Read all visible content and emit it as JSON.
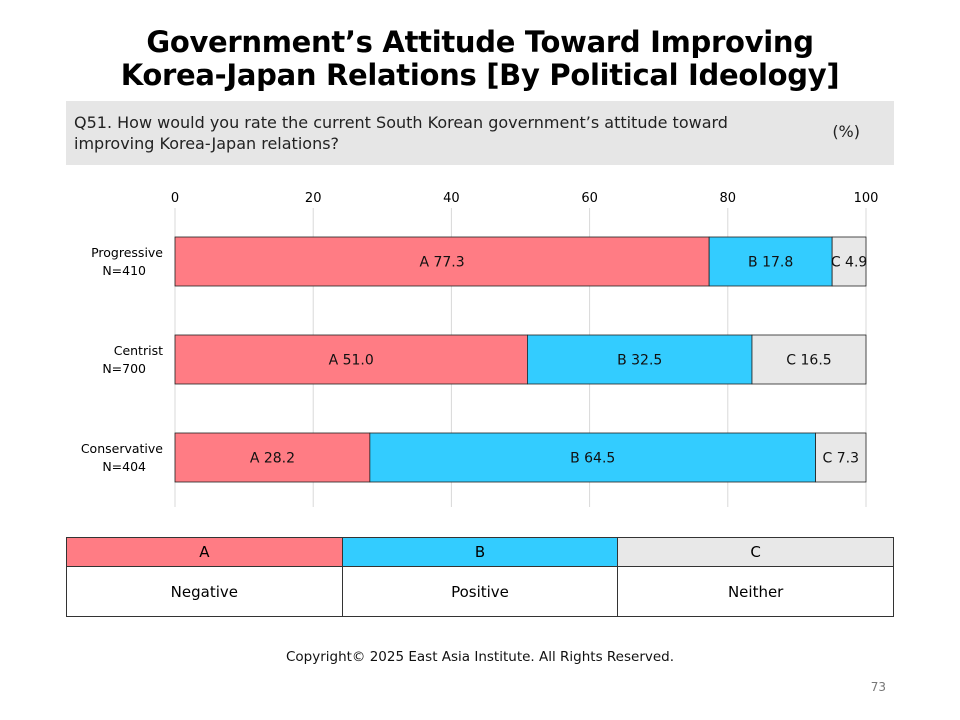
{
  "title_line1": "Government’s Attitude Toward Improving",
  "title_line2": "Korea-Japan Relations [By Political Ideology]",
  "question": "Q51. How would you rate the current South Korean government’s attitude toward improving Korea-Japan relations?",
  "unit": "(%)",
  "chart_data": {
    "type": "bar",
    "orientation": "horizontal",
    "stacked": true,
    "xlim": [
      0,
      100
    ],
    "x_ticks": [
      0,
      20,
      40,
      60,
      80,
      100
    ],
    "grid": true,
    "categories": [
      {
        "name": "Progressive",
        "n": "N=410"
      },
      {
        "name": "Centrist",
        "n": "N=700"
      },
      {
        "name": "Conservative",
        "n": "N=404"
      }
    ],
    "series": [
      {
        "name": "A",
        "color": "#ff7c84",
        "values": [
          77.3,
          51.0,
          28.2
        ]
      },
      {
        "name": "B",
        "color": "#33ccff",
        "values": [
          17.8,
          32.5,
          64.5
        ]
      },
      {
        "name": "C",
        "color": "#e8e8e8",
        "values": [
          4.9,
          16.5,
          7.3
        ]
      }
    ]
  },
  "legend": {
    "keys": [
      {
        "key": "A",
        "label": "Negative",
        "color": "#ff7c84"
      },
      {
        "key": "B",
        "label": "Positive",
        "color": "#33ccff"
      },
      {
        "key": "C",
        "label": "Neither",
        "color": "#e8e8e8"
      }
    ]
  },
  "copyright": "Copyright© 2025 East Asia Institute. All Rights Reserved.",
  "page_number": "73"
}
